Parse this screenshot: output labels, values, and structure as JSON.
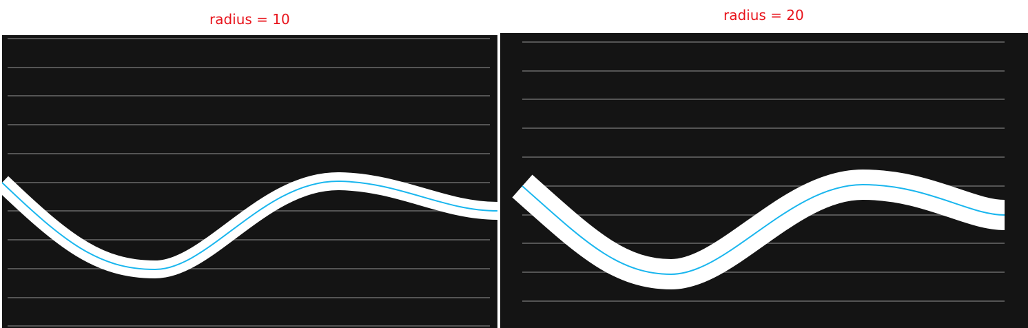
{
  "colors": {
    "canvas_bg": "#141414",
    "gridline": "#555555",
    "glow": "#ffffff",
    "stroke": "#1ab6ee",
    "caption": "#e8141c"
  },
  "panels": [
    {
      "caption": "radius = 10",
      "glow_radius": 10
    },
    {
      "caption": "radius = 20",
      "glow_radius": 20
    }
  ]
}
